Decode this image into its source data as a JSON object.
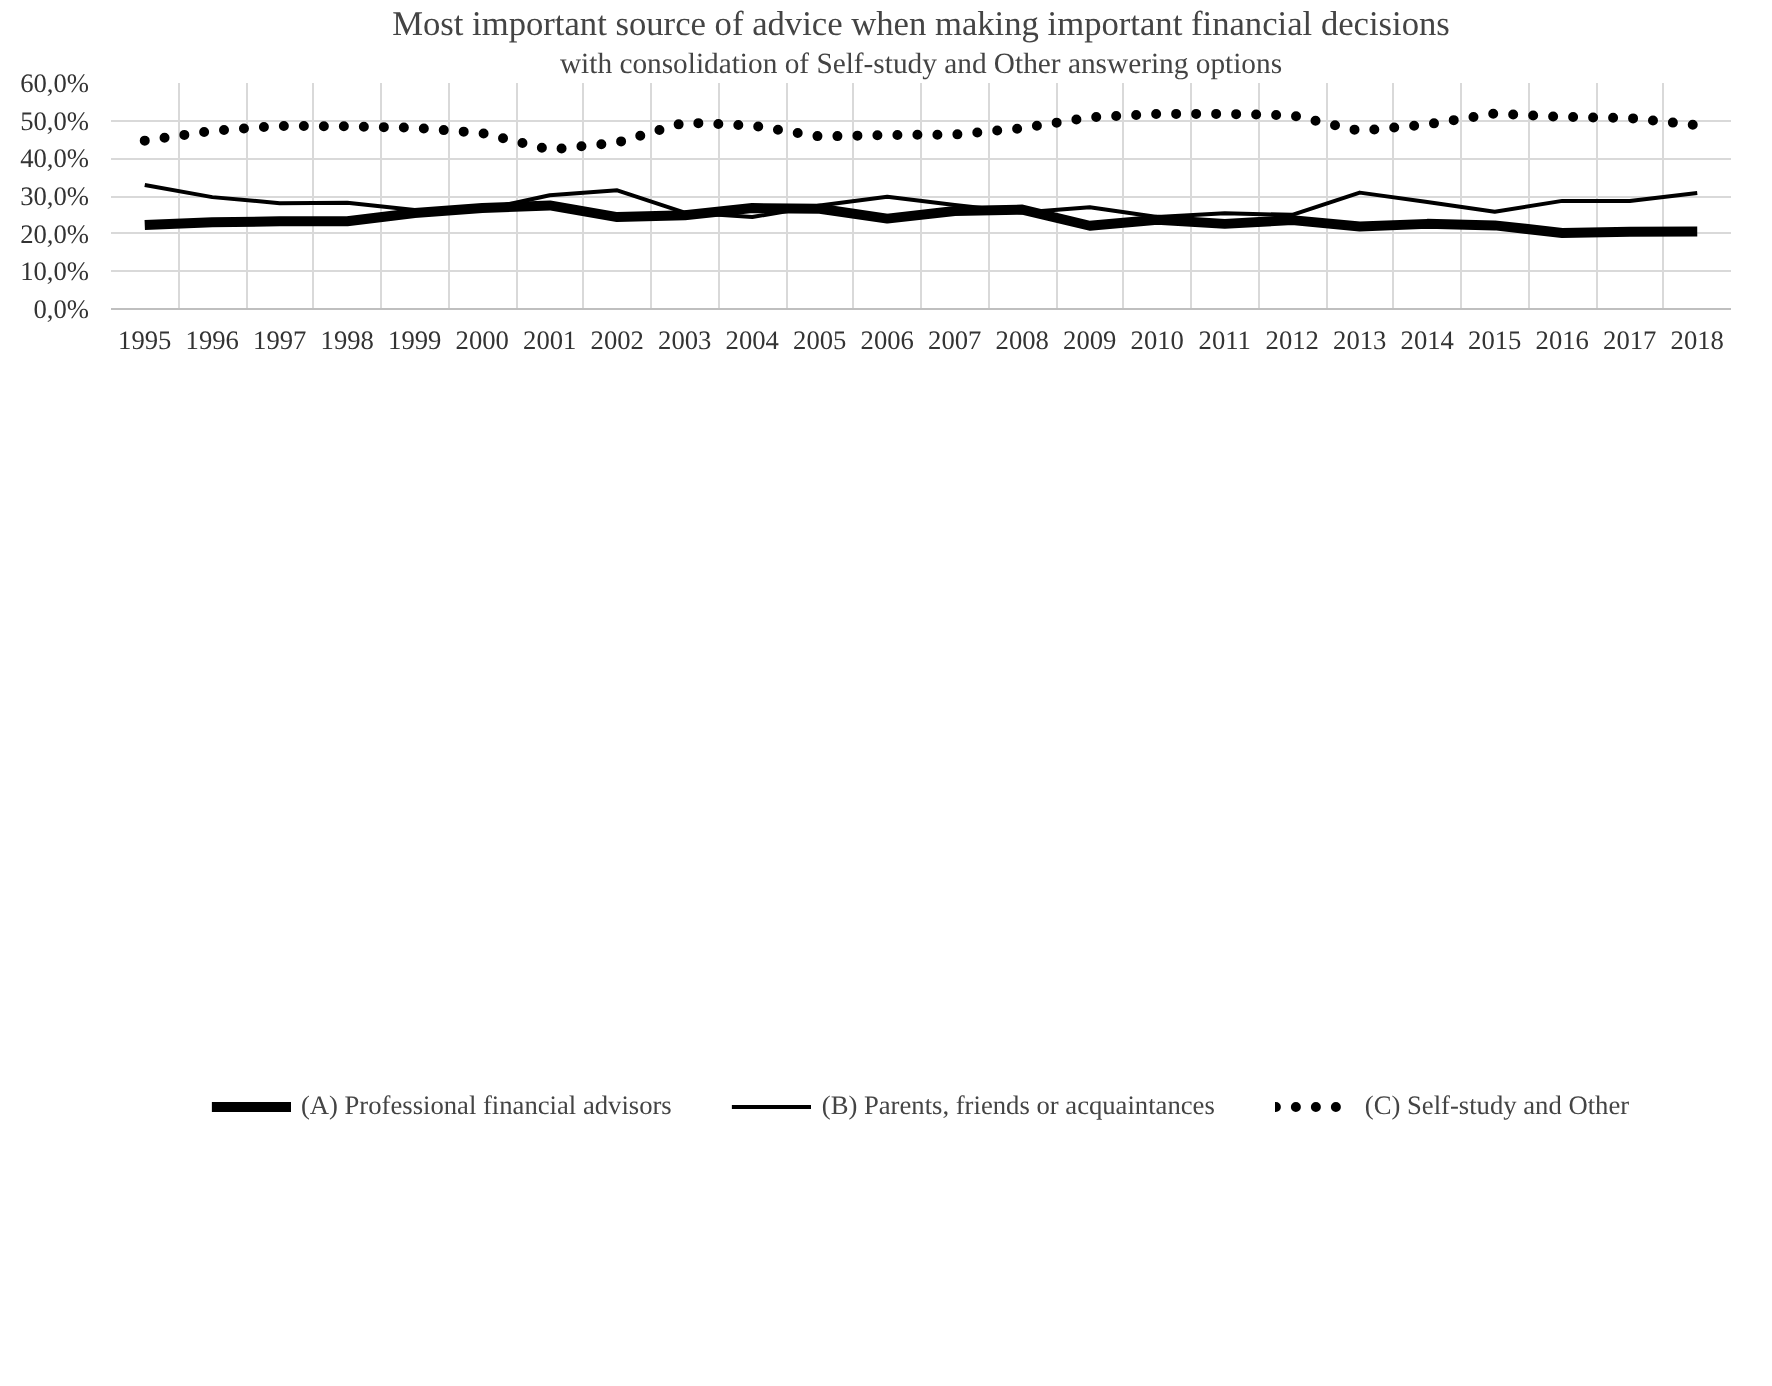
{
  "chart_data": {
    "type": "line",
    "title": "Most important source of advice when making important financial decisions",
    "subtitle": "with consolidation of Self-study and Other answering options",
    "categories": [
      "1995",
      "1996",
      "1997",
      "1998",
      "1999",
      "2000",
      "2001",
      "2002",
      "2003",
      "2004",
      "2005",
      "2006",
      "2007",
      "2008",
      "2009",
      "2010",
      "2011",
      "2012",
      "2013",
      "2014",
      "2015",
      "2016",
      "2017",
      "2018"
    ],
    "series": [
      {
        "name": "(A) Professional financial advisors",
        "color": "#000000",
        "values": [
          22.3,
          23.0,
          23.3,
          23.3,
          25.5,
          26.8,
          27.5,
          24.4,
          24.9,
          26.8,
          26.6,
          24.0,
          26.0,
          26.4,
          22.1,
          23.7,
          22.6,
          23.6,
          21.9,
          22.6,
          22.2,
          20.2,
          20.5,
          20.6
        ]
      },
      {
        "name": "(B) Parents, friends or acquaintances",
        "color": "#000000",
        "values": [
          32.9,
          29.7,
          28.1,
          28.2,
          26.3,
          26.3,
          30.2,
          31.5,
          25.6,
          24.4,
          27.5,
          29.8,
          27.6,
          25.6,
          27.0,
          24.4,
          25.4,
          25.0,
          30.9,
          28.4,
          25.8,
          28.7,
          28.7,
          30.8
        ]
      },
      {
        "name": "(C) Self-study and Other",
        "color": "#000000",
        "line_style": "dotted",
        "values": [
          44.7,
          47.3,
          48.6,
          48.5,
          48.1,
          46.7,
          42.3,
          44.2,
          49.5,
          48.7,
          45.8,
          46.2,
          46.3,
          48.0,
          50.9,
          51.8,
          51.8,
          51.4,
          47.3,
          49.0,
          51.9,
          51.0,
          50.7,
          48.8
        ]
      }
    ],
    "ylim": [
      0,
      60
    ],
    "yticks": [
      {
        "value": 0,
        "label": "0,0%"
      },
      {
        "value": 10,
        "label": "10,0%"
      },
      {
        "value": 20,
        "label": "20,0%"
      },
      {
        "value": 30,
        "label": "30,0%"
      },
      {
        "value": 40,
        "label": "40,0%"
      },
      {
        "value": 50,
        "label": "50,0%"
      },
      {
        "value": 60,
        "label": "60,0%"
      }
    ],
    "grid": true,
    "legend": "bottom"
  }
}
